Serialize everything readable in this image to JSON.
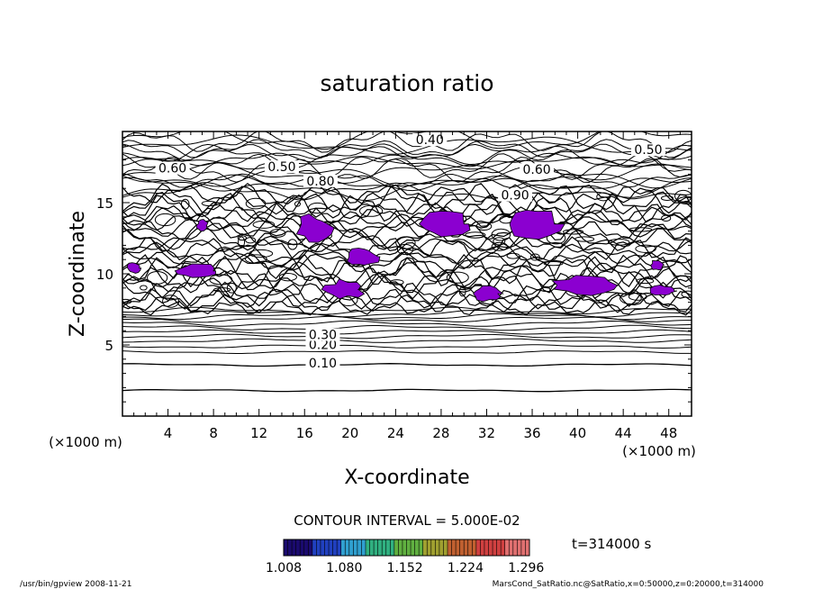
{
  "chart_data": {
    "type": "contour",
    "title": "saturation ratio",
    "xlabel": "X-coordinate",
    "ylabel": "Z-coordinate",
    "x_unit": "(×1000 m)",
    "y_unit": "(×1000 m)",
    "xlim": [
      0,
      50
    ],
    "ylim": [
      0,
      20
    ],
    "x_ticks": [
      "4",
      "8",
      "12",
      "16",
      "20",
      "24",
      "28",
      "32",
      "36",
      "40",
      "44",
      "48"
    ],
    "y_ticks": [
      "5",
      "10",
      "15"
    ],
    "contour_interval_label": "CONTOUR INTERVAL = 5.000E-02",
    "contour_labels": [
      {
        "label": "0.10",
        "x": 17.6,
        "z": 3.6
      },
      {
        "label": "0.20",
        "x": 17.6,
        "z": 4.9
      },
      {
        "label": "0.30",
        "x": 17.6,
        "z": 5.6
      },
      {
        "label": "0.40",
        "x": 27,
        "z": 19.3
      },
      {
        "label": "0.50",
        "x": 14,
        "z": 17.4
      },
      {
        "label": "0.50",
        "x": 46.2,
        "z": 18.6
      },
      {
        "label": "0.60",
        "x": 4.4,
        "z": 17.3
      },
      {
        "label": "0.60",
        "x": 36.4,
        "z": 17.2
      },
      {
        "label": "0.80",
        "x": 17.4,
        "z": 16.4
      },
      {
        "label": "0.90",
        "x": 34.5,
        "z": 15.4
      }
    ],
    "supersaturated_region_color": "#8b00d0",
    "colorbar": {
      "ticks": [
        "1.008",
        "1.080",
        "1.152",
        "1.224",
        "1.296"
      ],
      "range": [
        1.008,
        1.3
      ],
      "colors": [
        "#1a0a6e",
        "#2040c0",
        "#30a0d0",
        "#30b080",
        "#60b040",
        "#a0a030",
        "#c06030",
        "#d04040",
        "#e07070"
      ]
    },
    "time_label": "t=314000 s"
  },
  "footer": {
    "left": "/usr/bin/gpview   2008-11-21",
    "right": "MarsCond_SatRatio.nc@SatRatio,x=0:50000,z=0:20000,t=314000"
  }
}
